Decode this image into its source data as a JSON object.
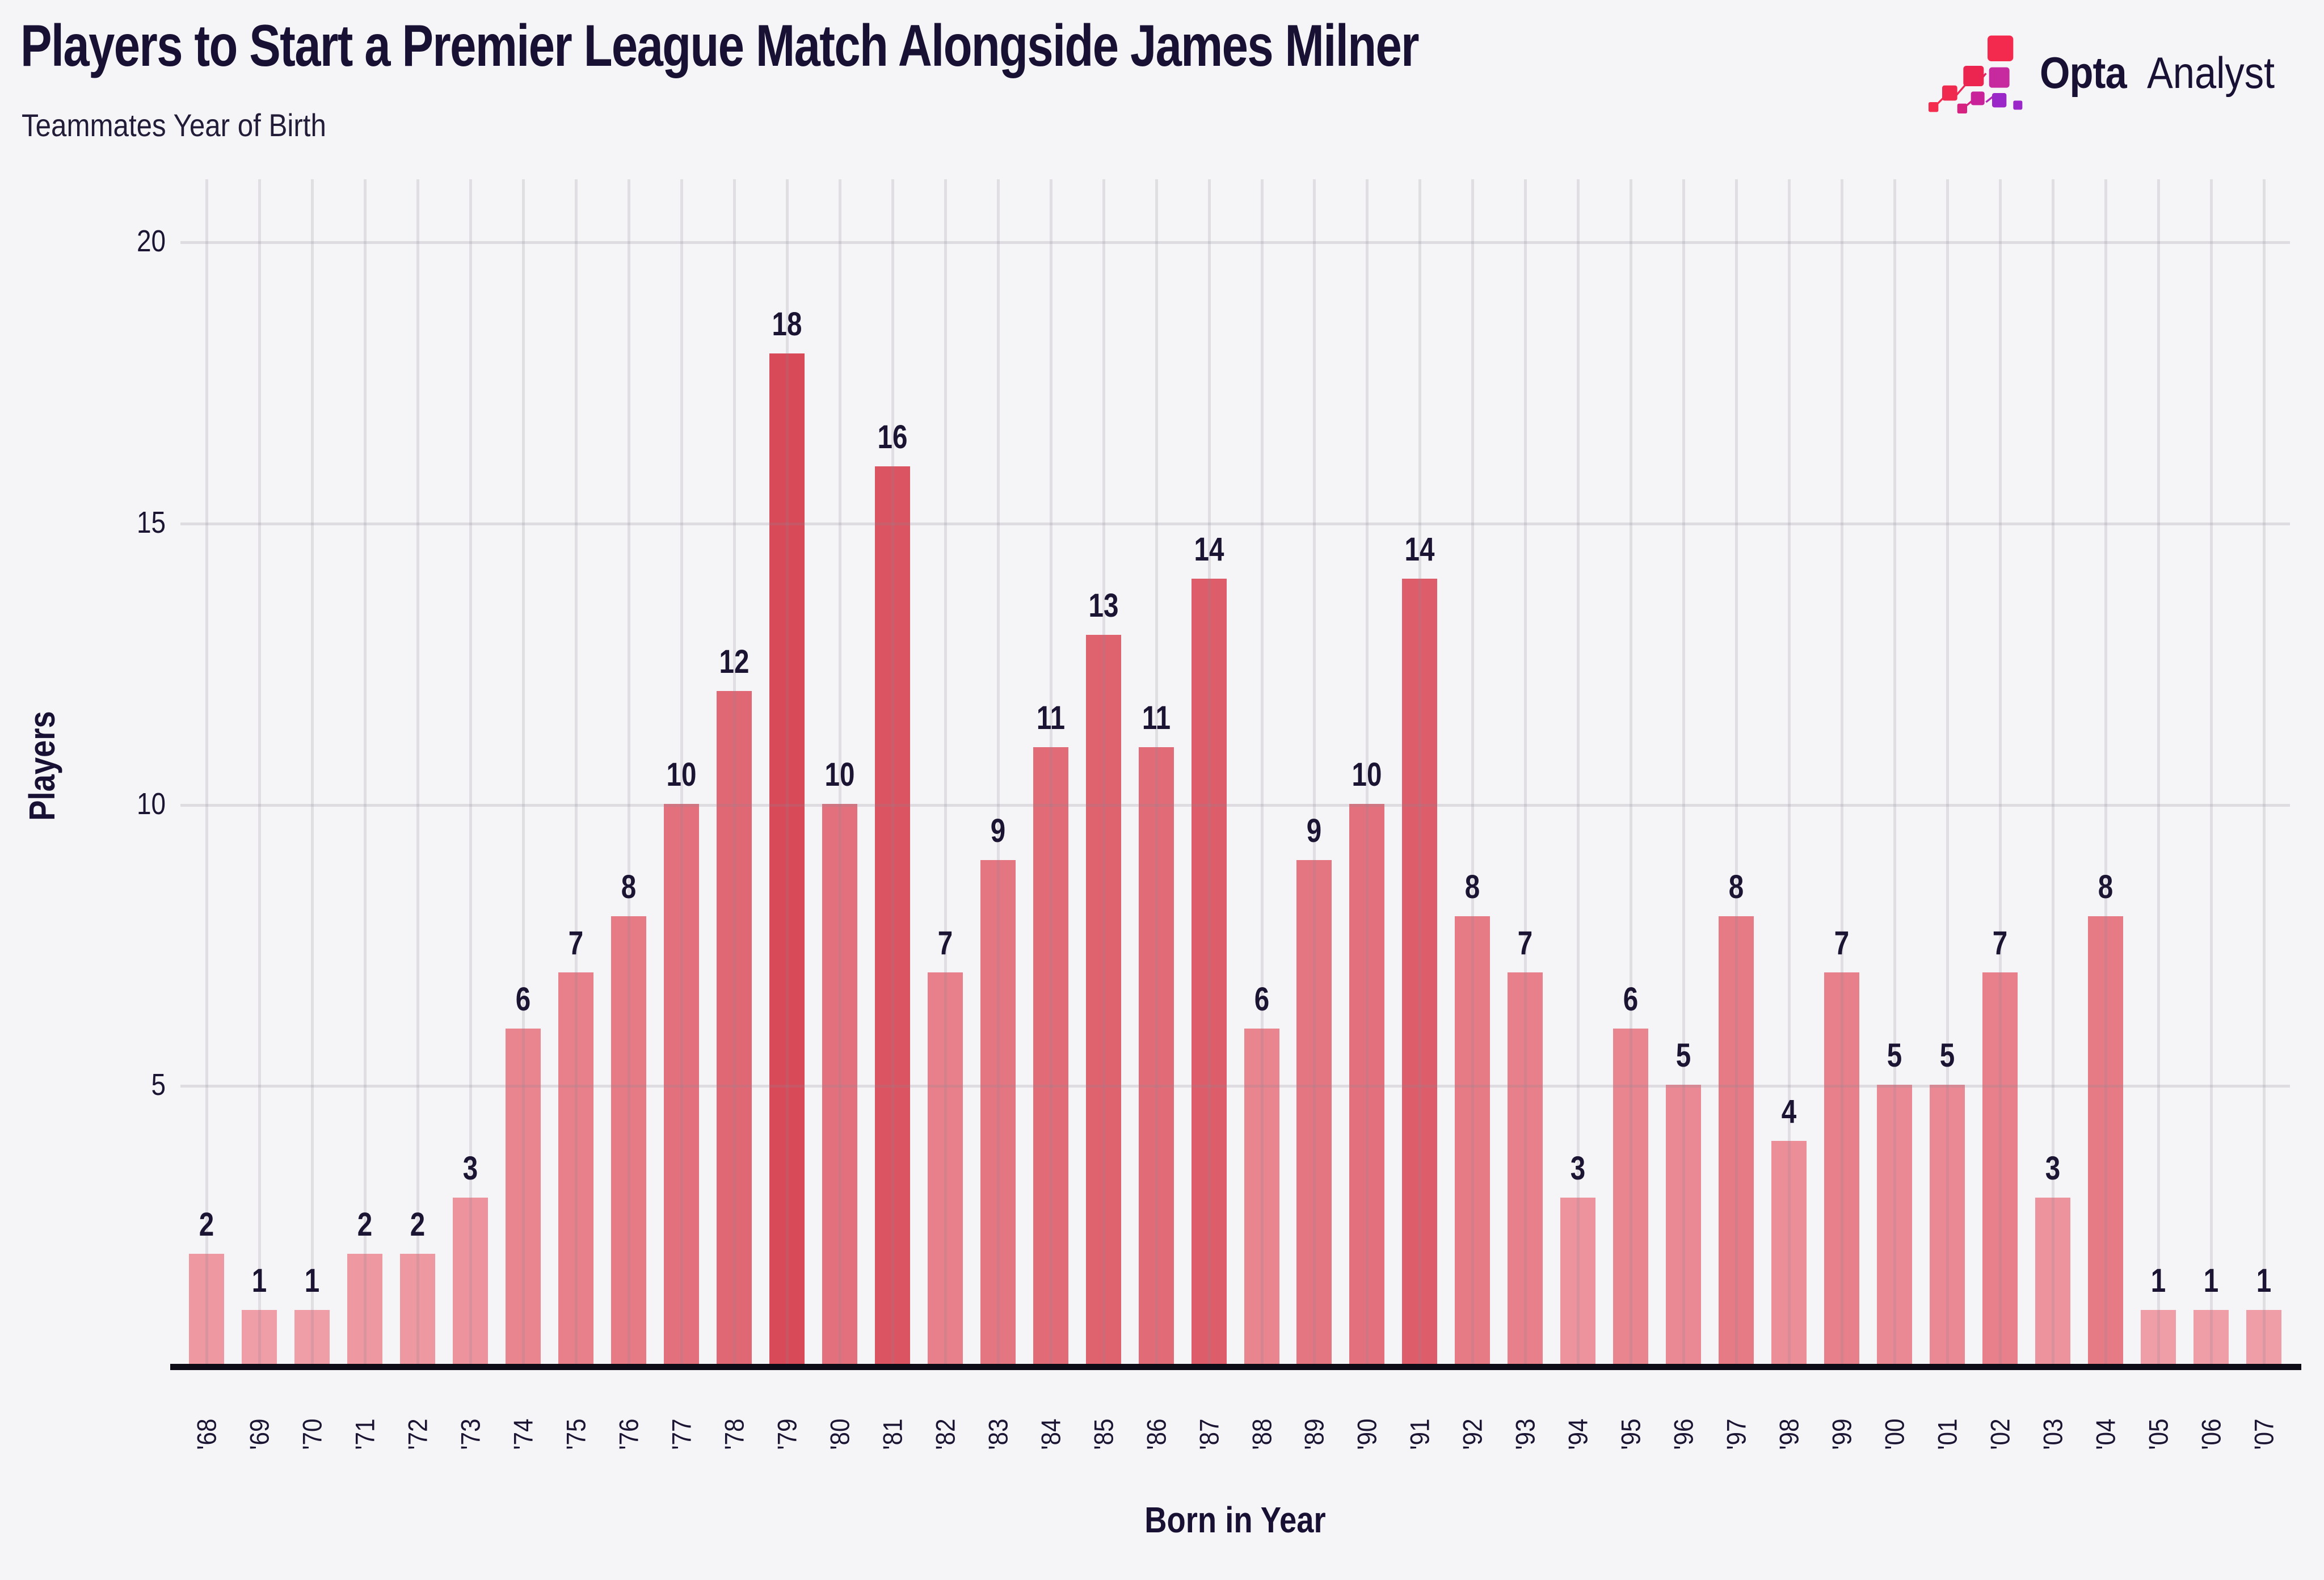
{
  "page": {
    "background": "#f5f4f6"
  },
  "header": {
    "title": "Players to Start a Premier League Match Alongside James Milner",
    "subtitle": "Teammates Year of Birth",
    "text_color": "#191134"
  },
  "brand": {
    "icon": "opta-stairs-icon",
    "name_bold": "Opta",
    "name_light": "Analyst",
    "icon_colors": [
      "#f42d4f",
      "#e02364",
      "#c9219a",
      "#9c27c9"
    ]
  },
  "chart_data": {
    "type": "bar",
    "title": "Players to Start a Premier League Match Alongside James Milner",
    "subtitle": "Teammates Year of Birth",
    "xlabel": "Born in Year",
    "ylabel": "Players",
    "categories": [
      "'68",
      "'69",
      "'70",
      "'71",
      "'72",
      "'73",
      "'74",
      "'75",
      "'76",
      "'77",
      "'78",
      "'79",
      "'80",
      "'81",
      "'82",
      "'83",
      "'84",
      "'85",
      "'86",
      "'87",
      "'88",
      "'89",
      "'90",
      "'91",
      "'92",
      "'93",
      "'94",
      "'95",
      "'96",
      "'97",
      "'98",
      "'99",
      "'00",
      "'01",
      "'02",
      "'03",
      "'04",
      "'05",
      "'06",
      "'07"
    ],
    "values": [
      2,
      1,
      1,
      2,
      2,
      3,
      6,
      7,
      8,
      10,
      12,
      18,
      10,
      16,
      7,
      9,
      11,
      13,
      11,
      14,
      6,
      9,
      10,
      14,
      8,
      7,
      3,
      6,
      5,
      8,
      4,
      7,
      5,
      5,
      7,
      3,
      8,
      1,
      1,
      1
    ],
    "ylim": [
      0,
      20
    ],
    "yticks": [
      5,
      10,
      15,
      20
    ],
    "grid": {
      "horizontal_major": true,
      "vertical_per_bar": true,
      "color": "#e4e2e8"
    },
    "bar_color_low": "#ef9da6",
    "bar_color_high": "#d84a58",
    "value_label_color": "#1b1533",
    "axis_line_color": "#0d0b15",
    "legend": "none"
  }
}
